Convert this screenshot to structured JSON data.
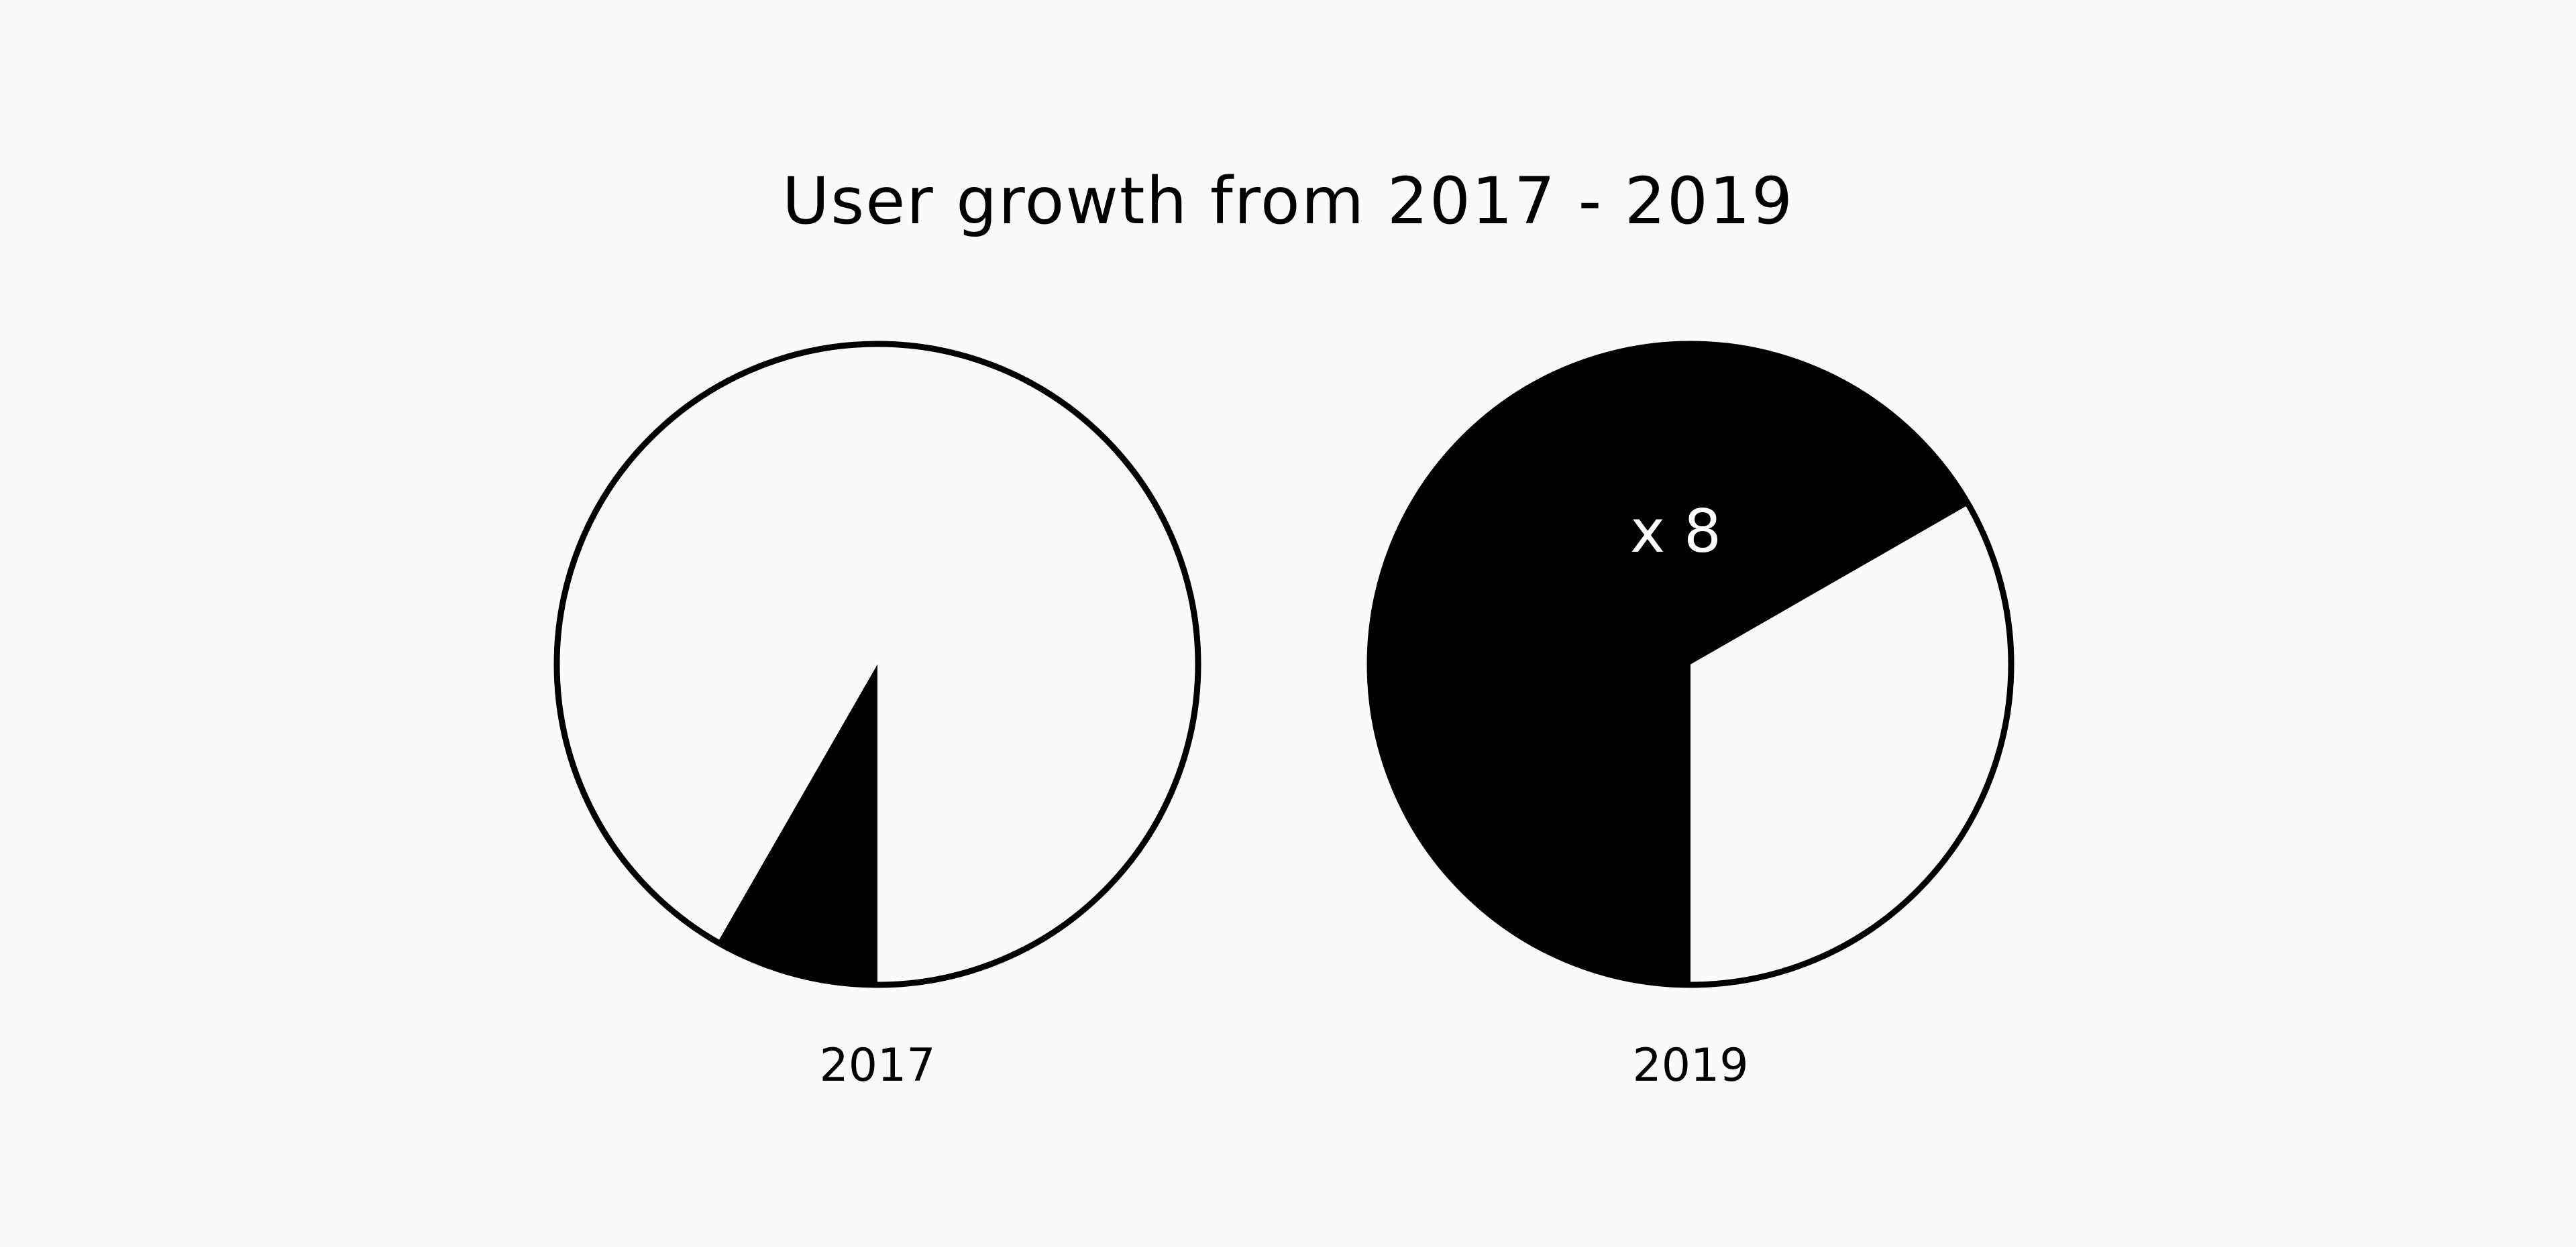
{
  "chart_data": {
    "type": "pie",
    "title": "User growth from 2017 - 2019",
    "colors": {
      "background": "#fafafa",
      "filled": "#000000",
      "empty": "#fafafa",
      "annotation_text": "#ffffff"
    },
    "pies": [
      {
        "label": "2017",
        "filled_fraction": 0.083,
        "annotation": ""
      },
      {
        "label": "2019",
        "filled_fraction": 0.667,
        "annotation": "x 8"
      }
    ]
  }
}
